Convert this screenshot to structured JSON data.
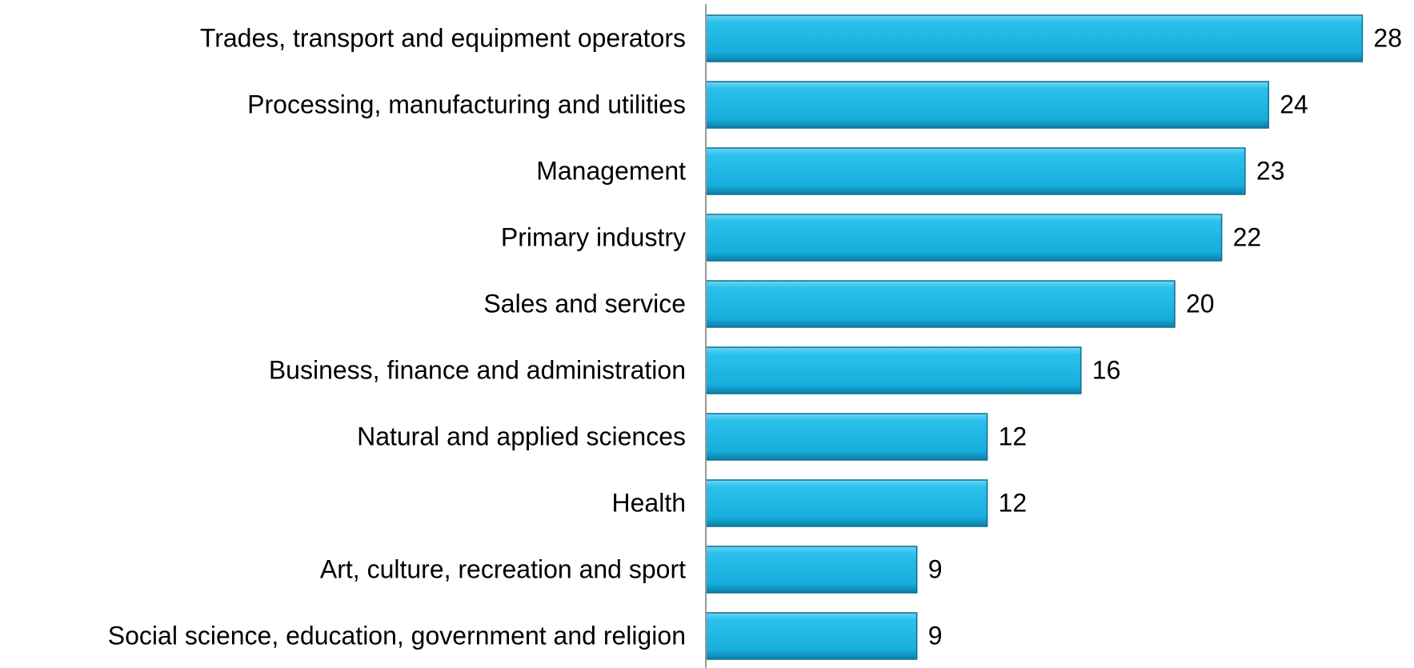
{
  "chart_data": {
    "type": "bar",
    "orientation": "horizontal",
    "categories": [
      "Trades, transport  and equipment operators",
      "Processing, manufacturing and utilities",
      "Management",
      "Primary industry",
      "Sales and service",
      "Business, finance and administration",
      "Natural and applied sciences",
      "Health",
      "Art, culture, recreation and sport",
      "Social science, education, government and religion"
    ],
    "values": [
      28,
      24,
      23,
      22,
      20,
      16,
      12,
      12,
      9,
      9
    ],
    "color": "#1db6e4"
  }
}
